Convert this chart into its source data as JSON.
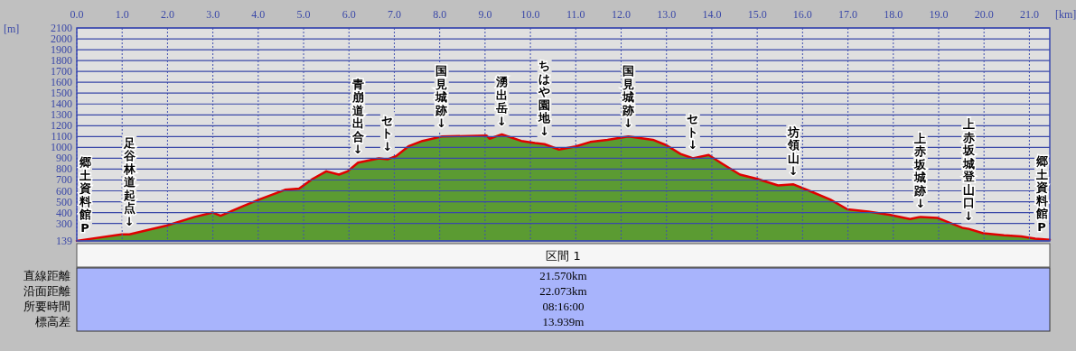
{
  "chart_data": {
    "type": "area",
    "xlabel": "[km]",
    "ylabel": "[m]",
    "grid": true,
    "xlim": [
      0,
      21.45
    ],
    "ylim": [
      139,
      2100
    ],
    "xticks": [
      {
        "value": 0,
        "label": "0.0"
      },
      {
        "value": 1,
        "label": "1.0"
      },
      {
        "value": 2,
        "label": "2.0"
      },
      {
        "value": 3,
        "label": "3.0"
      },
      {
        "value": 4,
        "label": "4.0"
      },
      {
        "value": 5,
        "label": "5.0"
      },
      {
        "value": 6,
        "label": "6.0"
      },
      {
        "value": 7,
        "label": "7.0"
      },
      {
        "value": 8,
        "label": "8.0"
      },
      {
        "value": 9,
        "label": "9.0"
      },
      {
        "value": 10,
        "label": "10.0"
      },
      {
        "value": 11,
        "label": "11.0"
      },
      {
        "value": 12,
        "label": "12.0"
      },
      {
        "value": 13,
        "label": "13.0"
      },
      {
        "value": 14,
        "label": "14.0"
      },
      {
        "value": 15,
        "label": "15.0"
      },
      {
        "value": 16,
        "label": "16.0"
      },
      {
        "value": 17,
        "label": "17.0"
      },
      {
        "value": 18,
        "label": "18.0"
      },
      {
        "value": 19,
        "label": "19.0"
      },
      {
        "value": 20,
        "label": "20.0"
      },
      {
        "value": 21,
        "label": "21.0"
      }
    ],
    "yticks": [
      139,
      300,
      400,
      500,
      600,
      700,
      800,
      900,
      1000,
      1100,
      1200,
      1300,
      1400,
      1500,
      1600,
      1700,
      1800,
      1900,
      2000,
      2100
    ],
    "series": [
      {
        "color": "#5b9b32",
        "x": [
          0,
          0.99,
          1.16,
          1.98,
          2.6,
          3.0,
          3.17,
          3.67,
          4.02,
          4.59,
          4.9,
          5.2,
          5.5,
          5.78,
          5.97,
          6.2,
          6.66,
          6.85,
          7.04,
          7.31,
          7.62,
          8.04,
          9.03,
          9.1,
          9.37,
          9.8,
          10.1,
          10.31,
          10.63,
          11.0,
          11.32,
          11.7,
          12.16,
          12.7,
          13.0,
          13.31,
          13.58,
          13.93,
          14.23,
          14.62,
          15.0,
          15.46,
          15.8,
          16.15,
          16.61,
          16.99,
          17.45,
          17.91,
          18.37,
          18.6,
          18.98,
          19.52,
          19.66,
          19.98,
          20.44,
          20.82,
          21.13,
          21.45
        ],
        "values": [
          140,
          200,
          200,
          280,
          360,
          400,
          370,
          460,
          520,
          610,
          620,
          710,
          780,
          750,
          780,
          860,
          900,
          890,
          920,
          1010,
          1060,
          1100,
          1110,
          1080,
          1120,
          1060,
          1040,
          1030,
          980,
          1010,
          1050,
          1070,
          1100,
          1070,
          1020,
          940,
          900,
          930,
          850,
          750,
          710,
          650,
          660,
          600,
          520,
          430,
          410,
          380,
          340,
          360,
          350,
          260,
          250,
          210,
          190,
          180,
          160,
          150
        ]
      }
    ],
    "annotations": [
      {
        "text": "郷土資料館P",
        "x": 0,
        "y": 140
      },
      {
        "text": "足谷林道起点↓",
        "x": 1.16,
        "y": 200
      },
      {
        "text": "青崩道出合↓",
        "x": 6.2,
        "y": 860
      },
      {
        "text": "セト↓",
        "x": 6.85,
        "y": 890
      },
      {
        "text": "国見城跡↓",
        "x": 8.04,
        "y": 1100
      },
      {
        "text": "湧出岳↓",
        "x": 9.37,
        "y": 1120
      },
      {
        "text": "ちはや園地↓",
        "x": 10.31,
        "y": 1030
      },
      {
        "text": "国見城跡↓",
        "x": 12.16,
        "y": 1100
      },
      {
        "text": "セト↓",
        "x": 13.58,
        "y": 900
      },
      {
        "text": "坊領山↓",
        "x": 15.8,
        "y": 660
      },
      {
        "text": "上赤坂城跡↓",
        "x": 18.6,
        "y": 360
      },
      {
        "text": "上赤坂城登山口↓",
        "x": 19.66,
        "y": 250
      },
      {
        "text": "郷土資料館P",
        "x": 21.45,
        "y": 150
      },
      "区間 1",
      "直線距離",
      "21.570km",
      "沿面距離",
      "22.073km",
      "所要時間",
      "08:16:00",
      "標高差",
      "13.939m"
    ]
  }
}
